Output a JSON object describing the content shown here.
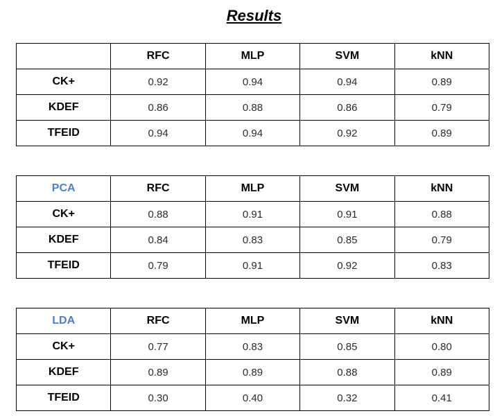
{
  "title": "Results",
  "accent_color": "#4a7fd0",
  "tables": [
    {
      "method": "",
      "columns": [
        "RFC",
        "MLP",
        "SVM",
        "kNN"
      ],
      "rows": [
        {
          "label": "CK+",
          "values": [
            "0.92",
            "0.94",
            "0.94",
            "0.89"
          ]
        },
        {
          "label": "KDEF",
          "values": [
            "0.86",
            "0.88",
            "0.86",
            "0.79"
          ]
        },
        {
          "label": "TFEID",
          "values": [
            "0.94",
            "0.94",
            "0.92",
            "0.89"
          ]
        }
      ]
    },
    {
      "method": "PCA",
      "columns": [
        "RFC",
        "MLP",
        "SVM",
        "kNN"
      ],
      "rows": [
        {
          "label": "CK+",
          "values": [
            "0.88",
            "0.91",
            "0.91",
            "0.88"
          ]
        },
        {
          "label": "KDEF",
          "values": [
            "0.84",
            "0.83",
            "0.85",
            "0.79"
          ]
        },
        {
          "label": "TFEID",
          "values": [
            "0.79",
            "0.91",
            "0.92",
            "0.83"
          ]
        }
      ]
    },
    {
      "method": "LDA",
      "columns": [
        "RFC",
        "MLP",
        "SVM",
        "kNN"
      ],
      "rows": [
        {
          "label": "CK+",
          "values": [
            "0.77",
            "0.83",
            "0.85",
            "0.80"
          ]
        },
        {
          "label": "KDEF",
          "values": [
            "0.89",
            "0.89",
            "0.88",
            "0.89"
          ]
        },
        {
          "label": "TFEID",
          "values": [
            "0.30",
            "0.40",
            "0.32",
            "0.41"
          ]
        }
      ]
    }
  ]
}
